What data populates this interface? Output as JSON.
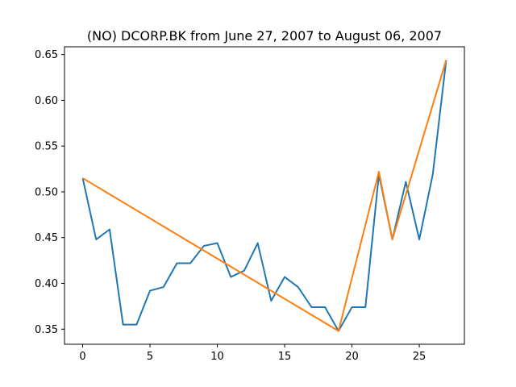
{
  "chart_data": {
    "type": "line",
    "title": "(NO) DCORP.BK from June 27, 2007 to August 06, 2007",
    "xlabel": "",
    "ylabel": "",
    "xlim": [
      -1.35,
      28.35
    ],
    "ylim": [
      0.3335,
      0.6585
    ],
    "x_ticks": [
      0,
      5,
      10,
      15,
      20,
      25
    ],
    "x_tick_labels": [
      "0",
      "5",
      "10",
      "15",
      "20",
      "25"
    ],
    "y_ticks": [
      0.35,
      0.4,
      0.45,
      0.5,
      0.55,
      0.6,
      0.65
    ],
    "y_tick_labels": [
      "0.35",
      "0.40",
      "0.45",
      "0.50",
      "0.55",
      "0.60",
      "0.65"
    ],
    "grid": false,
    "legend": "none",
    "series": [
      {
        "color": "#1f77b4",
        "x": [
          0,
          1,
          2,
          3,
          4,
          5,
          6,
          7,
          8,
          9,
          10,
          11,
          12,
          13,
          14,
          15,
          16,
          17,
          18,
          19,
          20,
          21,
          22,
          23,
          24,
          25,
          26,
          27
        ],
        "y": [
          0.515,
          0.448,
          0.459,
          0.355,
          0.355,
          0.392,
          0.396,
          0.422,
          0.422,
          0.441,
          0.444,
          0.407,
          0.414,
          0.444,
          0.381,
          0.407,
          0.396,
          0.374,
          0.374,
          0.348,
          0.374,
          0.374,
          0.519,
          0.448,
          0.511,
          0.448,
          0.519,
          0.644
        ]
      },
      {
        "color": "#ff7f0e",
        "x": [
          0,
          19,
          22,
          23,
          27
        ],
        "y": [
          0.515,
          0.348,
          0.522,
          0.448,
          0.644
        ]
      }
    ]
  }
}
